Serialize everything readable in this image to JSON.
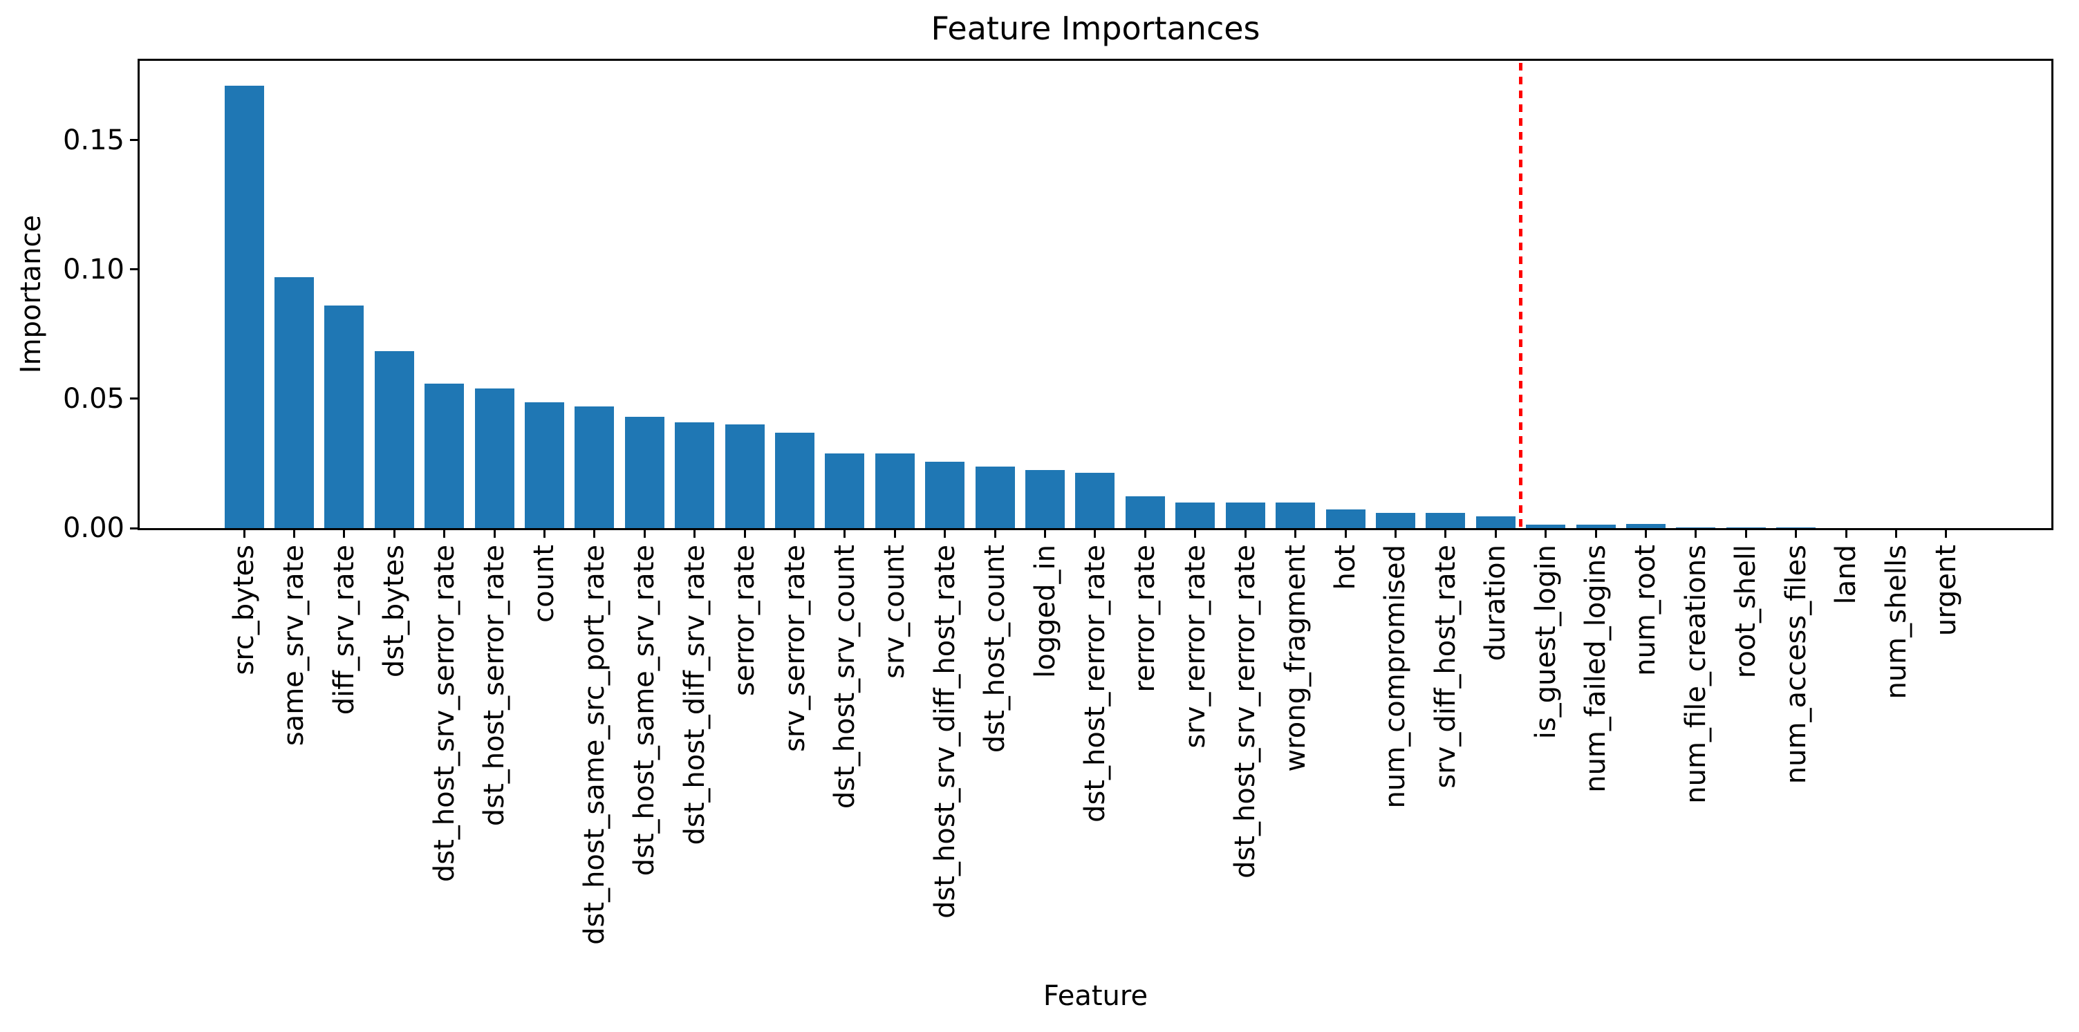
{
  "chart_data": {
    "type": "bar",
    "title": "Feature Importances",
    "xlabel": "Feature",
    "ylabel": "Importance",
    "categories": [
      "src_bytes",
      "same_srv_rate",
      "diff_srv_rate",
      "dst_bytes",
      "dst_host_srv_serror_rate",
      "dst_host_serror_rate",
      "count",
      "dst_host_same_src_port_rate",
      "dst_host_same_srv_rate",
      "dst_host_diff_srv_rate",
      "serror_rate",
      "srv_serror_rate",
      "dst_host_srv_count",
      "srv_count",
      "dst_host_srv_diff_host_rate",
      "dst_host_count",
      "logged_in",
      "dst_host_rerror_rate",
      "rerror_rate",
      "srv_rerror_rate",
      "dst_host_srv_rerror_rate",
      "wrong_fragment",
      "hot",
      "num_compromised",
      "srv_diff_host_rate",
      "duration",
      "is_guest_login",
      "num_failed_logins",
      "num_root",
      "num_file_creations",
      "root_shell",
      "num_access_files",
      "land",
      "num_shells",
      "urgent"
    ],
    "values": [
      0.171,
      0.097,
      0.086,
      0.0685,
      0.056,
      0.054,
      0.0487,
      0.047,
      0.043,
      0.041,
      0.04,
      0.037,
      0.029,
      0.029,
      0.0256,
      0.0238,
      0.0224,
      0.0215,
      0.0123,
      0.0098,
      0.0099,
      0.0098,
      0.0071,
      0.006,
      0.006,
      0.0045,
      0.0014,
      0.0014,
      0.0016,
      0.0004,
      0.0003,
      0.0002,
      0.0001,
      0.0001,
      0.0
    ],
    "ylim": [
      0,
      0.1807
    ],
    "yticks": [
      0,
      0.05,
      0.1,
      0.15
    ],
    "ytick_labels": [
      "0.00",
      "0.05",
      "0.10",
      "0.15"
    ],
    "grid": false,
    "legend": null,
    "bar_color": "#1f77b4",
    "vline": {
      "x": 25.5,
      "color": "#ff0000",
      "style": "dotted"
    }
  }
}
